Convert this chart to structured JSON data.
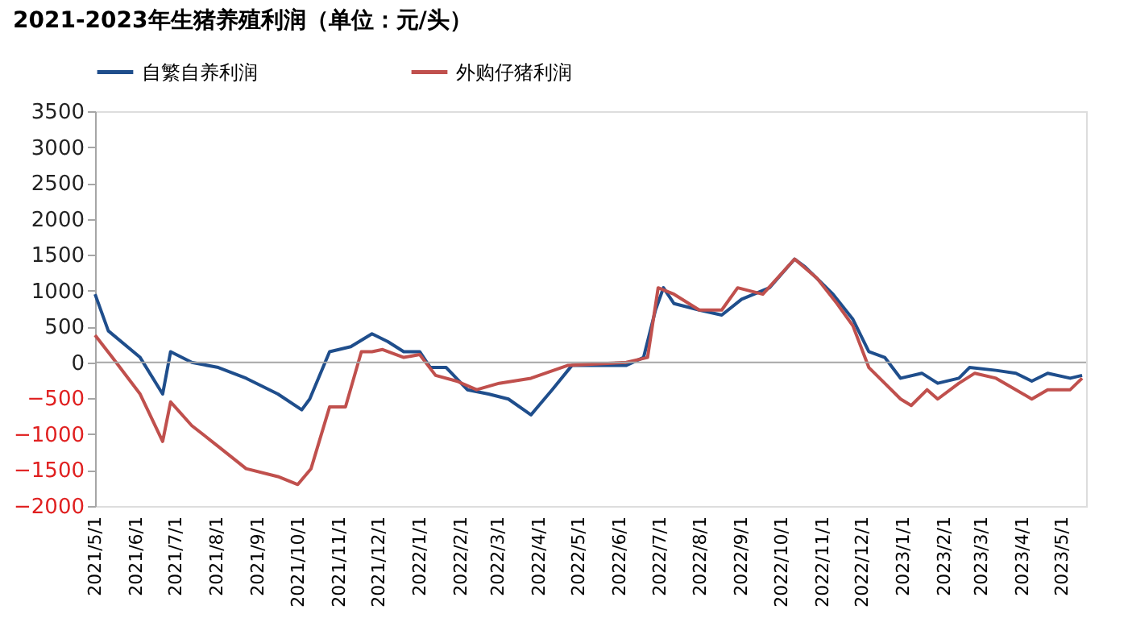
{
  "chart_data": {
    "type": "line",
    "title": "2021-2023年生猪养殖利润（单位：元/头）",
    "x": [
      "2021-05-01",
      "2021-05-11",
      "2021-06-04",
      "2021-06-21",
      "2021-06-27",
      "2021-07-13",
      "2021-08-02",
      "2021-08-23",
      "2021-09-16",
      "2021-10-04",
      "2021-10-10",
      "2021-10-25",
      "2021-11-10",
      "2021-11-26",
      "2021-12-08",
      "2021-12-20",
      "2022-01-01",
      "2022-01-09",
      "2022-01-21",
      "2022-02-06",
      "2022-02-22",
      "2022-03-09",
      "2022-03-26",
      "2022-04-11",
      "2022-04-26",
      "2022-06-06",
      "2022-06-19",
      "2022-06-28",
      "2022-07-04",
      "2022-07-12",
      "2022-07-31",
      "2022-08-17",
      "2022-09-01",
      "2022-09-22",
      "2022-10-11",
      "2022-10-19",
      "2022-11-09",
      "2022-11-24",
      "2022-12-06",
      "2022-12-18",
      "2022-12-30",
      "2023-01-15",
      "2023-01-27",
      "2023-02-12",
      "2023-02-20",
      "2023-03-12",
      "2023-03-27",
      "2023-04-08",
      "2023-04-20",
      "2023-05-07",
      "2023-05-16"
    ],
    "series": [
      {
        "name": "自繁自养利润",
        "color": "#1f4e8c",
        "values": [
          950,
          440,
          70,
          -440,
          150,
          0,
          -70,
          -220,
          -440,
          -660,
          -510,
          150,
          220,
          400,
          290,
          150,
          150,
          -70,
          -70,
          -380,
          -440,
          -510,
          -730,
          -380,
          -40,
          -40,
          70,
          730,
          1040,
          820,
          730,
          660,
          880,
          1040,
          1440,
          1330,
          950,
          600,
          150,
          70,
          -220,
          -150,
          -290,
          -220,
          -70,
          -110,
          -150,
          -260,
          -150,
          -220,
          -180
        ]
      },
      {
        "name": "外购仔猪利润",
        "color": "#c0504d",
        "x": [
          "2021-05-01",
          "2021-05-14",
          "2021-06-04",
          "2021-06-21",
          "2021-06-27",
          "2021-07-13",
          "2021-08-02",
          "2021-08-23",
          "2021-09-16",
          "2021-10-01",
          "2021-10-11",
          "2021-10-25",
          "2021-11-06",
          "2021-11-18",
          "2021-11-26",
          "2021-12-04",
          "2021-12-20",
          "2022-01-01",
          "2022-01-13",
          "2022-01-29",
          "2022-02-13",
          "2022-03-02",
          "2022-03-26",
          "2022-04-23",
          "2022-06-06",
          "2022-06-22",
          "2022-06-30",
          "2022-07-12",
          "2022-07-31",
          "2022-08-17",
          "2022-08-29",
          "2022-09-17",
          "2022-10-11",
          "2022-10-28",
          "2022-11-12",
          "2022-11-24",
          "2022-12-06",
          "2022-12-18",
          "2022-12-30",
          "2023-01-07",
          "2023-01-19",
          "2023-01-27",
          "2023-02-12",
          "2023-02-24",
          "2023-03-12",
          "2023-03-27",
          "2023-04-08",
          "2023-04-20",
          "2023-05-07",
          "2023-05-16"
        ],
        "values": [
          380,
          70,
          -440,
          -1100,
          -550,
          -880,
          -1170,
          -1480,
          -1590,
          -1700,
          -1480,
          -620,
          -620,
          150,
          150,
          180,
          70,
          110,
          -180,
          -260,
          -380,
          -290,
          -220,
          -40,
          0,
          70,
          1040,
          950,
          730,
          730,
          1040,
          950,
          1440,
          1170,
          820,
          510,
          -70,
          -290,
          -510,
          -600,
          -380,
          -510,
          -290,
          -150,
          -220,
          -380,
          -510,
          -380,
          -380,
          -220
        ]
      }
    ],
    "xlim": [
      "2021-05-01",
      "2023-05-19"
    ],
    "xticks": [
      {
        "value": "2021-05-01",
        "label": "2021/5/1"
      },
      {
        "value": "2021-06-01",
        "label": "2021/6/1"
      },
      {
        "value": "2021-07-01",
        "label": "2021/7/1"
      },
      {
        "value": "2021-08-01",
        "label": "2021/8/1"
      },
      {
        "value": "2021-09-01",
        "label": "2021/9/1"
      },
      {
        "value": "2021-10-01",
        "label": "2021/10/1"
      },
      {
        "value": "2021-11-01",
        "label": "2021/11/1"
      },
      {
        "value": "2021-12-01",
        "label": "2021/12/1"
      },
      {
        "value": "2022-01-01",
        "label": "2022/1/1"
      },
      {
        "value": "2022-02-01",
        "label": "2022/2/1"
      },
      {
        "value": "2022-03-01",
        "label": "2022/3/1"
      },
      {
        "value": "2022-04-01",
        "label": "2022/4/1"
      },
      {
        "value": "2022-05-01",
        "label": "2022/5/1"
      },
      {
        "value": "2022-06-01",
        "label": "2022/6/1"
      },
      {
        "value": "2022-07-01",
        "label": "2022/7/1"
      },
      {
        "value": "2022-08-01",
        "label": "2022/8/1"
      },
      {
        "value": "2022-09-01",
        "label": "2022/9/1"
      },
      {
        "value": "2022-10-01",
        "label": "2022/10/1"
      },
      {
        "value": "2022-11-01",
        "label": "2022/11/1"
      },
      {
        "value": "2022-12-01",
        "label": "2022/12/1"
      },
      {
        "value": "2023-01-01",
        "label": "2023/1/1"
      },
      {
        "value": "2023-02-01",
        "label": "2023/2/1"
      },
      {
        "value": "2023-03-01",
        "label": "2023/3/1"
      },
      {
        "value": "2023-04-01",
        "label": "2023/4/1"
      },
      {
        "value": "2023-05-01",
        "label": "2023/5/1"
      }
    ],
    "ylim": [
      -2000,
      3500
    ],
    "yticks": [
      -2000,
      -1500,
      -1000,
      -500,
      0,
      500,
      1000,
      1500,
      2000,
      2500,
      3000,
      3500
    ],
    "ref_lines": [
      {
        "axis": "y",
        "value": 0,
        "color": "#a6a6a6"
      }
    ],
    "grid": false,
    "legend": "top",
    "marker": "none",
    "line_style": "solid"
  }
}
